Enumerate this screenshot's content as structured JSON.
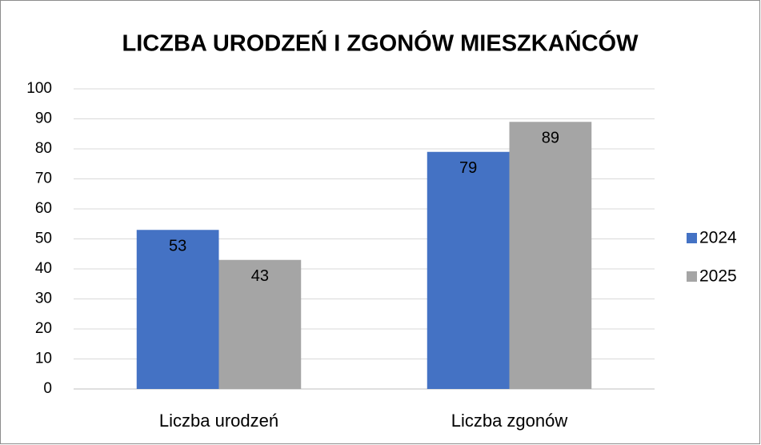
{
  "chart_data": {
    "type": "bar",
    "title": "LICZBA URODZEŃ I ZGONÓW MIESZKAŃCÓW",
    "categories": [
      "Liczba urodzeń",
      "Liczba zgonów"
    ],
    "series": [
      {
        "name": "2024",
        "color": "#4472c4",
        "values": [
          53,
          79
        ]
      },
      {
        "name": "2025",
        "color": "#a5a5a5",
        "values": [
          43,
          89
        ]
      }
    ],
    "ylim": [
      0,
      100
    ],
    "yticks": [
      0,
      10,
      20,
      30,
      40,
      50,
      60,
      70,
      80,
      90,
      100
    ],
    "grid": true,
    "legend": "right"
  }
}
